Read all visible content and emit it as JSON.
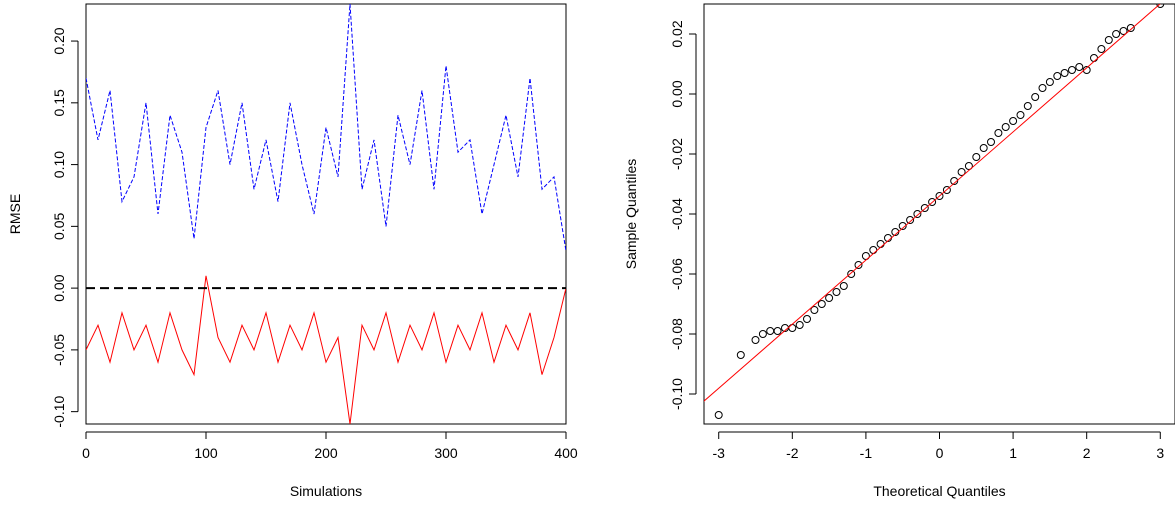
{
  "chart_data": [
    {
      "type": "line",
      "title": "",
      "xlabel": "Simulations",
      "ylabel": "RMSE",
      "xlim": [
        0,
        400
      ],
      "ylim": [
        -0.11,
        0.23
      ],
      "x_ticks": [
        0,
        100,
        200,
        300,
        400
      ],
      "y_ticks": [
        -0.1,
        -0.05,
        0.0,
        0.05,
        0.1,
        0.15,
        0.2
      ],
      "x_tick_labels": [
        "0",
        "100",
        "200",
        "300",
        "400"
      ],
      "y_tick_labels": [
        "-0.10",
        "-0.05",
        "0.00",
        "0.05",
        "0.10",
        "0.15",
        "0.20"
      ],
      "grid": false,
      "reference_line": {
        "y": 0.0,
        "style": "dashed",
        "color": "#000000"
      },
      "series": [
        {
          "color": "#0000ff",
          "style": "dashed",
          "x": [
            0,
            10,
            20,
            30,
            40,
            50,
            60,
            70,
            80,
            90,
            100,
            110,
            120,
            130,
            140,
            150,
            160,
            170,
            180,
            190,
            200,
            210,
            220,
            230,
            240,
            250,
            260,
            270,
            280,
            290,
            300,
            310,
            320,
            330,
            340,
            350,
            360,
            370,
            380,
            390,
            400
          ],
          "values": [
            0.17,
            0.12,
            0.16,
            0.07,
            0.09,
            0.15,
            0.06,
            0.14,
            0.11,
            0.04,
            0.13,
            0.16,
            0.1,
            0.15,
            0.08,
            0.12,
            0.07,
            0.15,
            0.1,
            0.06,
            0.13,
            0.09,
            0.23,
            0.08,
            0.12,
            0.05,
            0.14,
            0.1,
            0.16,
            0.08,
            0.18,
            0.11,
            0.12,
            0.06,
            0.1,
            0.14,
            0.09,
            0.17,
            0.08,
            0.09,
            0.03
          ]
        },
        {
          "color": "#ff0000",
          "style": "solid",
          "x": [
            0,
            10,
            20,
            30,
            40,
            50,
            60,
            70,
            80,
            90,
            100,
            110,
            120,
            130,
            140,
            150,
            160,
            170,
            180,
            190,
            200,
            210,
            220,
            230,
            240,
            250,
            260,
            270,
            280,
            290,
            300,
            310,
            320,
            330,
            340,
            350,
            360,
            370,
            380,
            390,
            400
          ],
          "values": [
            -0.05,
            -0.03,
            -0.06,
            -0.02,
            -0.05,
            -0.03,
            -0.06,
            -0.02,
            -0.05,
            -0.07,
            0.01,
            -0.04,
            -0.06,
            -0.03,
            -0.05,
            -0.02,
            -0.06,
            -0.03,
            -0.05,
            -0.02,
            -0.06,
            -0.04,
            -0.11,
            -0.03,
            -0.05,
            -0.02,
            -0.06,
            -0.03,
            -0.05,
            -0.02,
            -0.06,
            -0.03,
            -0.05,
            -0.02,
            -0.06,
            -0.03,
            -0.05,
            -0.02,
            -0.07,
            -0.04,
            0.0
          ]
        }
      ]
    },
    {
      "type": "scatter",
      "title": "",
      "xlabel": "Theoretical Quantiles",
      "ylabel": "Sample Quantiles",
      "xlim": [
        -3.2,
        3.2
      ],
      "ylim": [
        -0.11,
        0.03
      ],
      "x_ticks": [
        -3,
        -2,
        -1,
        0,
        1,
        2,
        3
      ],
      "y_ticks": [
        -0.1,
        -0.08,
        -0.06,
        -0.04,
        -0.02,
        0.0,
        0.02
      ],
      "x_tick_labels": [
        "-3",
        "-2",
        "-1",
        "0",
        "1",
        "2",
        "3"
      ],
      "y_tick_labels": [
        "-0.10",
        "-0.08",
        "-0.06",
        "-0.04",
        "-0.02",
        "0.00",
        "0.02"
      ],
      "grid": false,
      "reference_line": {
        "x": [
          -3.3,
          3.3
        ],
        "y": [
          -0.1045,
          0.0365
        ],
        "color": "#ff0000"
      },
      "points": {
        "x": [
          -3.0,
          -2.7,
          -2.5,
          -2.4,
          -2.3,
          -2.2,
          -2.1,
          -2.0,
          -1.9,
          -1.8,
          -1.7,
          -1.6,
          -1.5,
          -1.4,
          -1.3,
          -1.2,
          -1.1,
          -1.0,
          -0.9,
          -0.8,
          -0.7,
          -0.6,
          -0.5,
          -0.4,
          -0.3,
          -0.2,
          -0.1,
          0.0,
          0.1,
          0.2,
          0.3,
          0.4,
          0.5,
          0.6,
          0.7,
          0.8,
          0.9,
          1.0,
          1.1,
          1.2,
          1.3,
          1.4,
          1.5,
          1.6,
          1.7,
          1.8,
          1.9,
          2.0,
          2.1,
          2.2,
          2.3,
          2.4,
          2.5,
          2.6,
          3.0
        ],
        "y": [
          -0.107,
          -0.087,
          -0.082,
          -0.08,
          -0.079,
          -0.079,
          -0.078,
          -0.078,
          -0.077,
          -0.075,
          -0.072,
          -0.07,
          -0.068,
          -0.066,
          -0.064,
          -0.06,
          -0.057,
          -0.054,
          -0.052,
          -0.05,
          -0.048,
          -0.046,
          -0.044,
          -0.042,
          -0.04,
          -0.038,
          -0.036,
          -0.034,
          -0.032,
          -0.029,
          -0.026,
          -0.024,
          -0.021,
          -0.018,
          -0.016,
          -0.013,
          -0.011,
          -0.009,
          -0.007,
          -0.004,
          -0.001,
          0.002,
          0.004,
          0.006,
          0.007,
          0.008,
          0.009,
          0.008,
          0.012,
          0.015,
          0.018,
          0.02,
          0.021,
          0.022,
          0.03
        ],
        "shape": "open-circle",
        "color": "#000000"
      }
    }
  ]
}
